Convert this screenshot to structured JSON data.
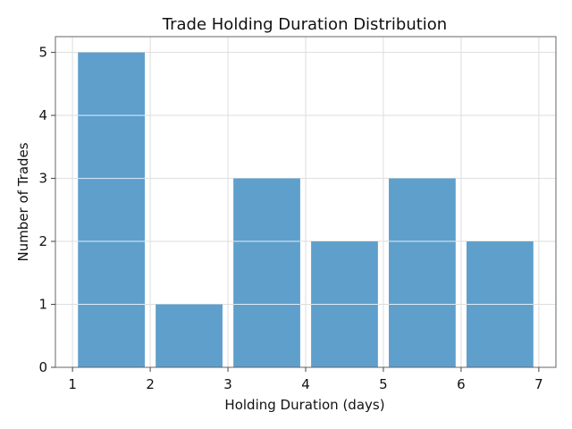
{
  "chart_data": {
    "type": "bar",
    "title": "Trade Holding Duration Distribution",
    "xlabel": "Holding Duration (days)",
    "ylabel": "Number of Trades",
    "bins": [
      {
        "start": 1,
        "end": 2,
        "count": 5
      },
      {
        "start": 2,
        "end": 3,
        "count": 1
      },
      {
        "start": 3,
        "end": 4,
        "count": 3
      },
      {
        "start": 4,
        "end": 5,
        "count": 2
      },
      {
        "start": 5,
        "end": 6,
        "count": 3
      },
      {
        "start": 6,
        "end": 7,
        "count": 2
      }
    ],
    "xticks": [
      "1",
      "2",
      "3",
      "4",
      "5",
      "6",
      "7"
    ],
    "yticks": [
      "0",
      "1",
      "2",
      "3",
      "4",
      "5"
    ],
    "xlim": [
      0.78,
      7.22
    ],
    "ylim": [
      0,
      5.25
    ],
    "grid": true,
    "bar_color": "#5f9fcc"
  }
}
